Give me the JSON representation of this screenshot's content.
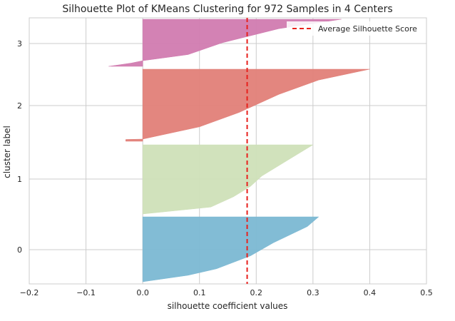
{
  "chart_data": {
    "type": "area",
    "title": "Silhouette Plot of KMeans Clustering for 972 Samples in 4 Centers",
    "xlabel": "silhouette coefficient values",
    "ylabel": "cluster label",
    "xlim": [
      -0.2,
      0.5
    ],
    "x_ticks": [
      -0.2,
      -0.1,
      0.0,
      0.1,
      0.2,
      0.3,
      0.4,
      0.5
    ],
    "x_tick_labels": [
      "−0.2",
      "−0.1",
      "0.0",
      "0.1",
      "0.2",
      "0.3",
      "0.4",
      "0.5"
    ],
    "y_tick_labels": [
      "0",
      "1",
      "2",
      "3"
    ],
    "grid": true,
    "legend": {
      "placement": "top-right",
      "entries": [
        "Average Silhouette Score"
      ]
    },
    "average_silhouette_score": 0.184,
    "clusters": [
      {
        "label": "0",
        "color": "#7bb8d3",
        "profile": [
          [
            0.0,
            0.31
          ],
          [
            0.15,
            0.29
          ],
          [
            0.4,
            0.23
          ],
          [
            0.6,
            0.19
          ],
          [
            0.8,
            0.13
          ],
          [
            0.9,
            0.08
          ],
          [
            1.0,
            0.0
          ]
        ]
      },
      {
        "label": "1",
        "color": "#cfe0b8",
        "profile": [
          [
            0.0,
            0.3
          ],
          [
            0.2,
            0.26
          ],
          [
            0.45,
            0.21
          ],
          [
            0.6,
            0.19
          ],
          [
            0.75,
            0.16
          ],
          [
            0.9,
            0.12
          ],
          [
            1.0,
            0.0
          ]
        ]
      },
      {
        "label": "2",
        "color": "#e27f78",
        "profile": [
          [
            0.0,
            0.4
          ],
          [
            0.15,
            0.31
          ],
          [
            0.35,
            0.24
          ],
          [
            0.6,
            0.17
          ],
          [
            0.8,
            0.1
          ],
          [
            0.97,
            0.0
          ],
          [
            0.975,
            -0.03
          ],
          [
            1.0,
            -0.03
          ]
        ]
      },
      {
        "label": "3",
        "color": "#d17bb0",
        "profile": [
          [
            0.0,
            0.35
          ],
          [
            0.2,
            0.24
          ],
          [
            0.5,
            0.14
          ],
          [
            0.75,
            0.08
          ],
          [
            0.88,
            0.0
          ],
          [
            0.93,
            -0.02
          ],
          [
            1.0,
            -0.06
          ]
        ]
      }
    ],
    "threshold_color": "#e8201c",
    "grid_color": "#cccccc"
  }
}
